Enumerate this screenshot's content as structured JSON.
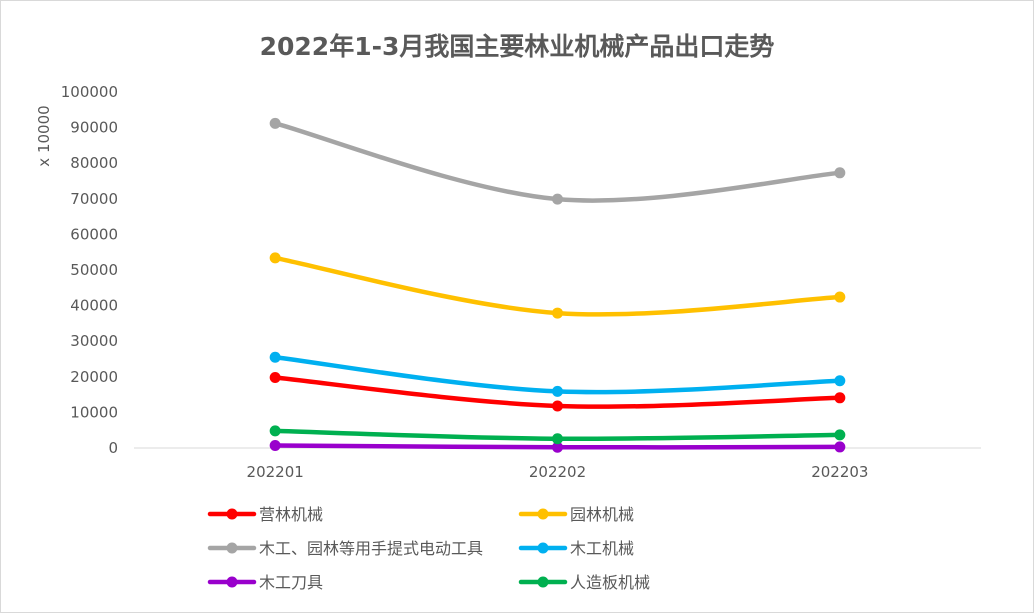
{
  "chart_data": {
    "type": "line",
    "title": "2022年1-3月我国主要林业机械产品出口走势",
    "ylabel": "x 10000",
    "xlabel": "",
    "categories": [
      "202201",
      "202202",
      "202203"
    ],
    "ylim": [
      0,
      100000
    ],
    "yticks": [
      0,
      10000,
      20000,
      30000,
      40000,
      50000,
      60000,
      70000,
      80000,
      90000,
      100000
    ],
    "grid": false,
    "smooth": true,
    "legend_position": "bottom",
    "series": [
      {
        "name": "营林机械",
        "color": "#ff0000",
        "values": [
          19800,
          11800,
          14100
        ]
      },
      {
        "name": "园林机械",
        "color": "#ffc000",
        "values": [
          53400,
          37900,
          42400
        ]
      },
      {
        "name": "木工、园林等用手提式电动工具",
        "color": "#a5a5a5",
        "values": [
          91200,
          69900,
          77300
        ]
      },
      {
        "name": "木工机械",
        "color": "#00b0f0",
        "values": [
          25500,
          15900,
          18900
        ]
      },
      {
        "name": "木工刀具",
        "color": "#9900cc",
        "values": [
          700,
          200,
          300
        ]
      },
      {
        "name": "人造板机械",
        "color": "#00b050",
        "values": [
          4800,
          2600,
          3700
        ]
      }
    ]
  }
}
